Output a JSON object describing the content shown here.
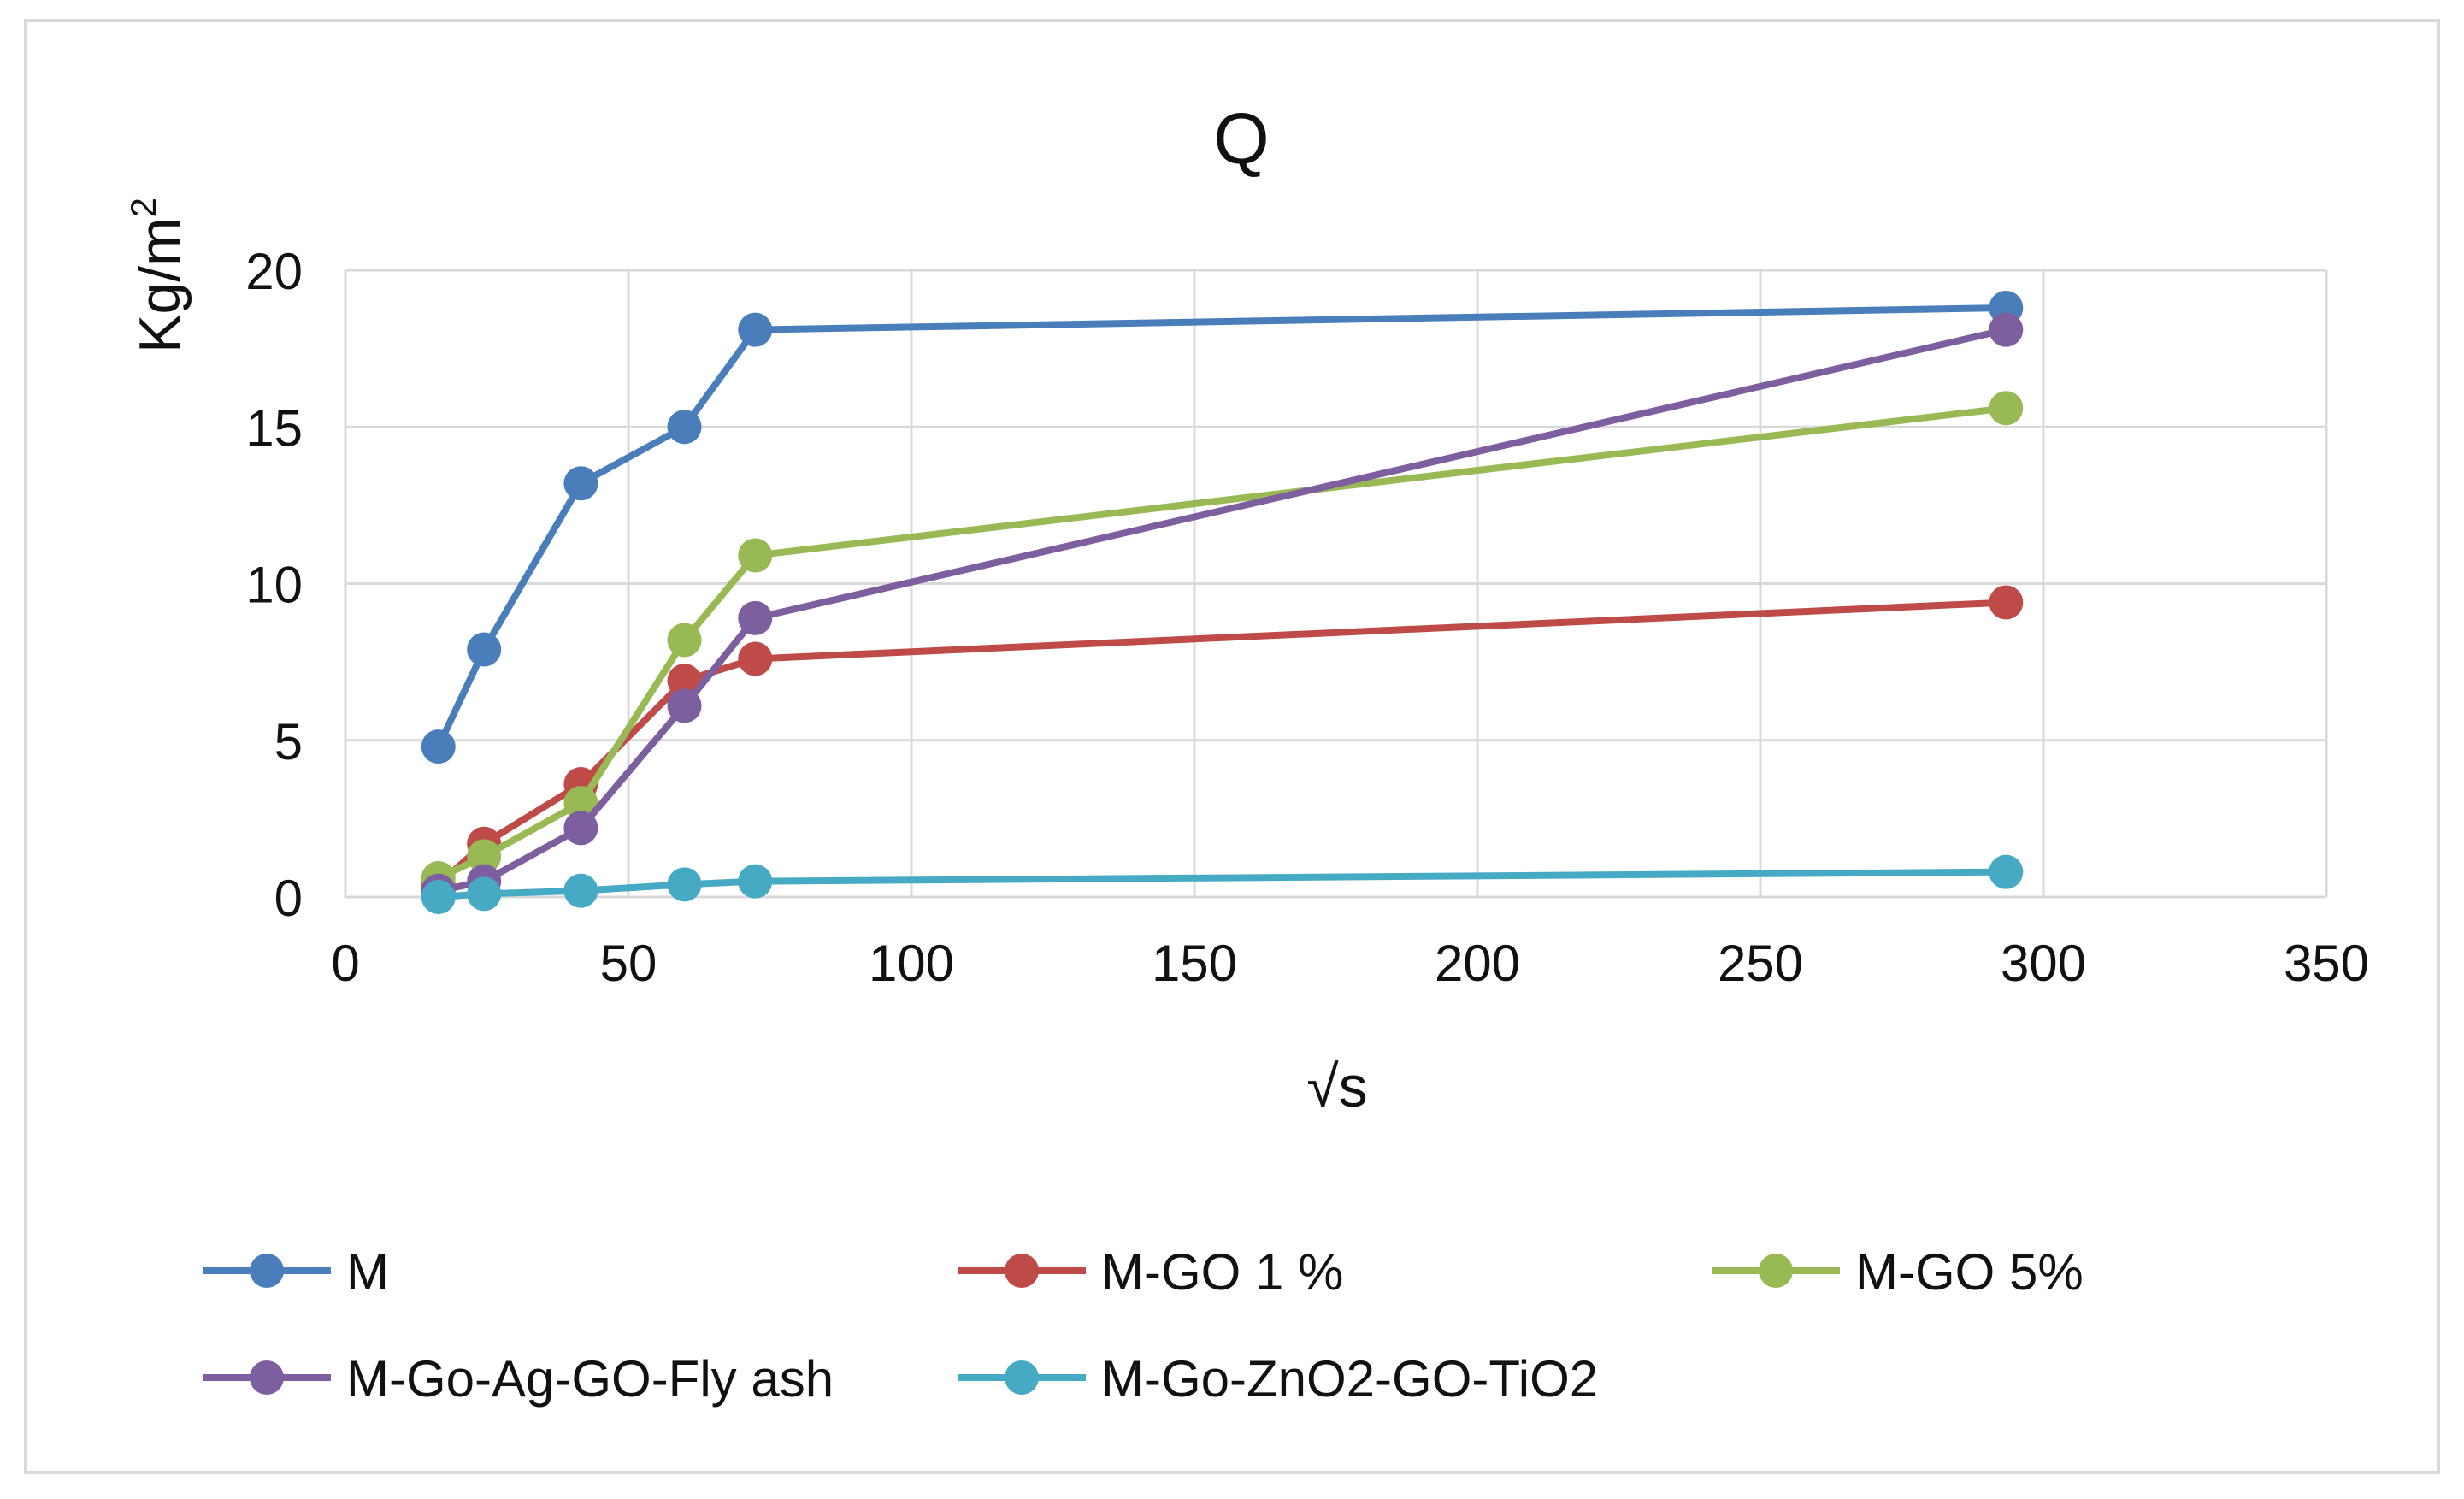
{
  "chart_data": {
    "type": "line",
    "title": "Q",
    "xlabel": "√s",
    "ylabel": "Kg/m",
    "ylabel_superscript": "2",
    "xlim": [
      0,
      350
    ],
    "ylim": [
      0,
      20
    ],
    "x_ticks": [
      0,
      50,
      100,
      150,
      200,
      250,
      300,
      350
    ],
    "y_ticks": [
      0,
      5,
      10,
      15,
      20
    ],
    "grid": true,
    "legend_position": "bottom",
    "x": [
      16.43,
      24.5,
      41.6,
      59.9,
      72.4,
      293.4
    ],
    "series": [
      {
        "name": "M",
        "color": "#4a7ebb",
        "values": [
          4.8,
          7.9,
          13.2,
          15.0,
          18.1,
          18.8
        ]
      },
      {
        "name": "M-GO 1 %",
        "color": "#be4b48",
        "values": [
          0.4,
          1.7,
          3.6,
          6.9,
          7.6,
          9.4
        ]
      },
      {
        "name": "M-GO 5%",
        "color": "#98b954",
        "values": [
          0.6,
          1.3,
          3.0,
          8.2,
          10.9,
          15.6
        ]
      },
      {
        "name": "M-Go-Ag-GO-Fly ash",
        "color": "#7d5fa0",
        "values": [
          0.2,
          0.5,
          2.2,
          6.1,
          8.9,
          18.1
        ]
      },
      {
        "name": "M-Go-ZnO2-GO-TiO2",
        "color": "#46aac5",
        "values": [
          0.0,
          0.1,
          0.2,
          0.4,
          0.5,
          0.8
        ]
      }
    ]
  }
}
